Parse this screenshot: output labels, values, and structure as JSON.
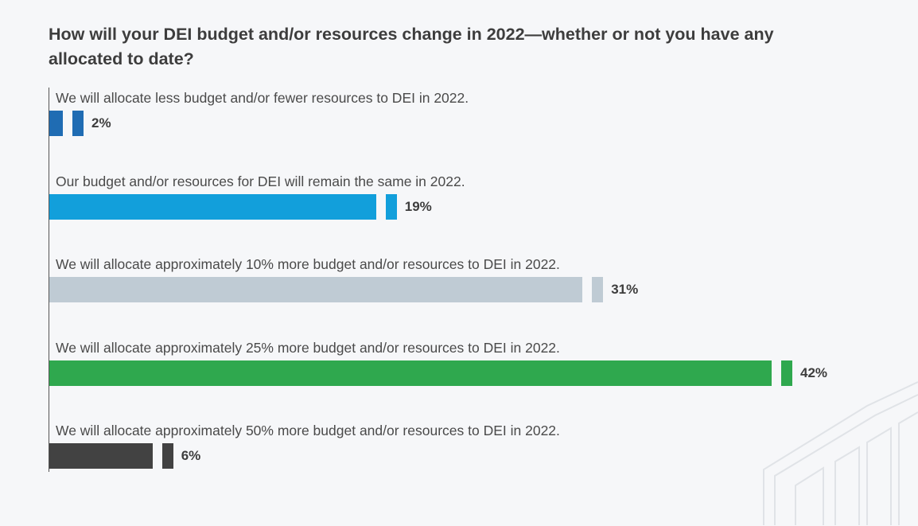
{
  "chart_data": {
    "type": "bar",
    "orientation": "horizontal",
    "title": "How will your DEI budget and/or resources change in 2022—whether or not you have any allocated to date?",
    "categories": [
      "We will allocate less budget and/or fewer resources to DEI in 2022.",
      "Our budget and/or resources for DEI will remain the same in 2022.",
      "We will allocate approximately 10% more budget and/or resources to DEI in 2022.",
      "We will allocate approximately 25% more budget and/or resources to DEI in 2022.",
      "We will allocate approximately 50% more budget and/or resources to DEI in 2022."
    ],
    "values": [
      2,
      19,
      31,
      42,
      6
    ],
    "value_labels": [
      "2%",
      "19%",
      "31%",
      "42%",
      "6%"
    ],
    "colors": [
      "#1f6cb3",
      "#129fdb",
      "#bfcbd4",
      "#2fa84e",
      "#424242"
    ],
    "xlabel": "",
    "ylabel": "",
    "xlim": [
      0,
      42
    ],
    "grid": false,
    "legend": "none"
  }
}
